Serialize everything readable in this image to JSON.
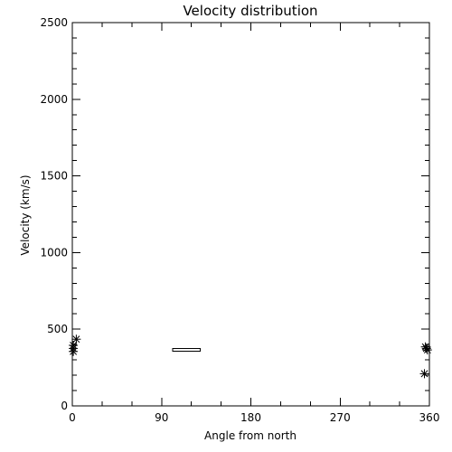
{
  "chart_data": {
    "type": "scatter",
    "title": "Velocity distribution",
    "xlabel": "Angle from north",
    "ylabel": "Velocity (km/s)",
    "xlim": [
      0,
      360
    ],
    "ylim": [
      0,
      2500
    ],
    "x_major_ticks": [
      0,
      90,
      180,
      270,
      360
    ],
    "y_major_ticks": [
      0,
      500,
      1000,
      1500,
      2000,
      2500
    ],
    "x_tick_labels": [
      "0",
      "90",
      "180",
      "270",
      "360"
    ],
    "y_tick_labels": [
      "0",
      "500",
      "1000",
      "1500",
      "2000",
      "2500"
    ],
    "grid": false,
    "marker": "asterisk",
    "points": [
      {
        "x": 1,
        "y": 395
      },
      {
        "x": 1,
        "y": 375
      },
      {
        "x": 1,
        "y": 355
      },
      {
        "x": 4,
        "y": 435
      },
      {
        "x": 356,
        "y": 385
      },
      {
        "x": 357,
        "y": 375
      },
      {
        "x": 358,
        "y": 365
      },
      {
        "x": 355,
        "y": 210
      }
    ],
    "range_bars": [
      {
        "x_start": 101,
        "x_end": 129,
        "y_low": 360,
        "y_high": 375
      }
    ]
  }
}
